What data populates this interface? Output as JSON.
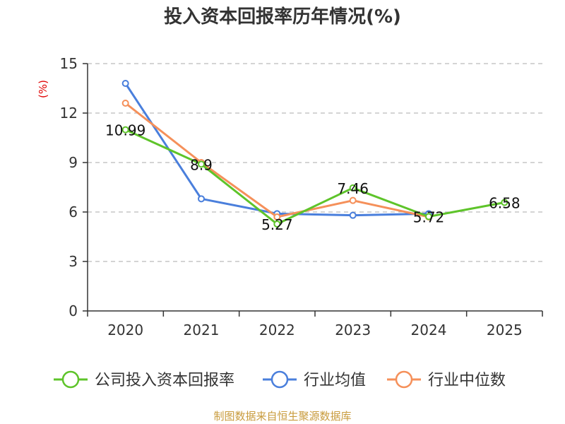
{
  "colors": {
    "company": "#5ec42a",
    "industry_avg": "#4a7fdc",
    "industry_median": "#f5905a",
    "grid": "#bbbbbb",
    "axis": "#333333",
    "unit": "#e00000",
    "source": "#c89b3c"
  },
  "chart_data": {
    "type": "line",
    "title": "投入资本回报率历年情况(%)",
    "ylabel": "(%)",
    "xlabel": "",
    "categories": [
      "2020",
      "2021",
      "2022",
      "2023",
      "2024",
      "2025"
    ],
    "ylim": [
      0,
      15
    ],
    "yticks": [
      0,
      3,
      6,
      9,
      12,
      15
    ],
    "grid": true,
    "legend_position": "bottom",
    "series": [
      {
        "name": "公司投入资本回报率",
        "color_key": "company",
        "values": [
          10.99,
          8.9,
          5.27,
          7.46,
          5.72,
          6.58
        ],
        "labels": [
          "10.99",
          "8.9",
          "5.27",
          "7.46",
          "5.72",
          "6.58"
        ]
      },
      {
        "name": "行业均值",
        "color_key": "industry_avg",
        "values": [
          13.8,
          6.8,
          5.9,
          5.8,
          5.9,
          null
        ]
      },
      {
        "name": "行业中位数",
        "color_key": "industry_median",
        "values": [
          12.6,
          9.0,
          5.7,
          6.7,
          5.7,
          null
        ]
      }
    ]
  },
  "footer": {
    "source": "制图数据来自恒生聚源数据库"
  }
}
